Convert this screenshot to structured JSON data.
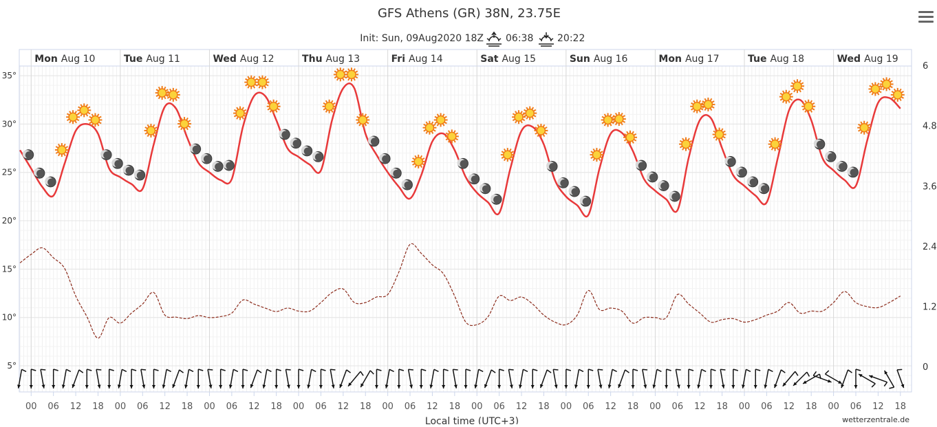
{
  "chart_data": {
    "type": "meteogram",
    "title": "GFS Athens (GR) 38N, 23.75E",
    "subtitle": "Init: Sun, 09Aug2020 18Z",
    "sunrise": "06:38",
    "sunset": "20:22",
    "xlabel": "Local time (UTC+3)",
    "credit": "wetterzentrale.de",
    "x": [
      -3,
      0,
      3,
      6,
      9,
      12,
      15,
      18,
      21,
      24,
      27,
      30,
      33,
      36,
      39,
      42,
      45,
      48,
      51,
      54,
      57,
      60,
      63,
      66,
      69,
      72,
      75,
      78,
      81,
      84,
      87,
      90,
      93,
      96,
      99,
      102,
      105,
      108,
      111,
      114,
      117,
      120,
      123,
      126,
      129,
      132,
      135,
      138,
      141,
      144,
      147,
      150,
      153,
      156,
      159,
      162,
      165,
      168,
      171,
      174,
      177,
      180,
      183,
      186,
      189,
      192,
      195,
      198,
      201,
      204,
      207,
      210,
      213,
      216,
      219,
      222,
      225,
      228,
      231,
      234
    ],
    "series": [
      {
        "color": "#e8393a",
        "axis": "y",
        "values": [
          27.3,
          25.4,
          23.5,
          22.6,
          25.9,
          29.3,
          30.0,
          29.0,
          25.4,
          24.5,
          23.8,
          23.3,
          27.9,
          31.8,
          31.6,
          28.6,
          26.0,
          25.0,
          24.2,
          24.3,
          29.7,
          32.9,
          32.9,
          30.4,
          27.5,
          26.6,
          25.8,
          25.2,
          30.4,
          33.7,
          33.7,
          29.0,
          26.8,
          25.0,
          23.5,
          22.3,
          24.7,
          28.2,
          29.0,
          27.3,
          24.5,
          22.9,
          21.9,
          20.8,
          25.4,
          29.3,
          29.7,
          27.9,
          24.2,
          22.5,
          21.6,
          20.6,
          25.4,
          29.0,
          29.1,
          27.2,
          24.3,
          23.1,
          22.2,
          21.1,
          26.5,
          30.4,
          30.6,
          27.5,
          24.7,
          23.6,
          22.6,
          21.9,
          26.5,
          31.4,
          32.5,
          30.4,
          26.5,
          25.2,
          24.2,
          23.6,
          28.2,
          32.2,
          32.7,
          31.6
        ]
      },
      {
        "color": "#8b2a1a",
        "axis": "y2",
        "dash": true,
        "values": [
          2.08,
          2.25,
          2.38,
          2.18,
          1.97,
          1.42,
          1.01,
          0.58,
          0.99,
          0.88,
          1.08,
          1.26,
          1.49,
          1.04,
          1.0,
          0.97,
          1.03,
          0.99,
          1.01,
          1.08,
          1.34,
          1.26,
          1.18,
          1.11,
          1.18,
          1.12,
          1.12,
          1.29,
          1.49,
          1.56,
          1.29,
          1.29,
          1.4,
          1.45,
          1.9,
          2.45,
          2.27,
          2.04,
          1.86,
          1.42,
          0.9,
          0.85,
          1.01,
          1.42,
          1.33,
          1.4,
          1.26,
          1.04,
          0.9,
          0.85,
          1.04,
          1.53,
          1.15,
          1.18,
          1.12,
          0.88,
          0.99,
          0.99,
          0.99,
          1.45,
          1.26,
          1.08,
          0.9,
          0.95,
          0.97,
          0.9,
          0.95,
          1.04,
          1.12,
          1.29,
          1.08,
          1.12,
          1.12,
          1.29,
          1.51,
          1.29,
          1.21,
          1.19,
          1.29,
          1.42
        ]
      }
    ],
    "symbols": [
      null,
      "moon",
      "moon",
      "moon",
      "sun",
      "sun",
      "sun",
      "sun",
      "moon",
      "moon",
      "moon",
      "moon",
      "sun",
      "sun",
      "sun",
      "sun",
      "moon",
      "moon",
      "moon",
      "moon",
      "sun",
      "sun",
      "sun",
      "sun",
      "moon",
      "moon",
      "moon",
      "moon",
      "sun",
      "sun",
      "sun",
      "sun",
      "moon",
      "moon",
      "moon",
      "moon",
      "sun",
      "sun",
      "sun",
      "sun",
      "moon",
      "moon",
      "moon",
      "moon",
      "sun",
      "sun",
      "sun",
      "sun",
      "moon",
      "moon",
      "moon",
      "moon",
      "sun",
      "sun",
      "sun",
      "sun",
      "moon",
      "moon",
      "moon",
      "moon",
      "sun",
      "sun",
      "sun",
      "sun",
      "moon",
      "moon",
      "moon",
      "moon",
      "sun",
      "sun",
      "sun",
      "sun",
      "moon",
      "moon",
      "moon",
      "moon",
      "sun",
      "sun",
      "sun",
      "sun"
    ],
    "wind_direction": [
      10,
      0,
      350,
      0,
      10,
      20,
      0,
      350,
      0,
      10,
      0,
      350,
      0,
      10,
      20,
      10,
      0,
      350,
      0,
      10,
      0,
      20,
      10,
      0,
      350,
      0,
      10,
      0,
      350,
      20,
      40,
      30,
      0,
      10,
      0,
      350,
      0,
      10,
      0,
      350,
      0,
      10,
      20,
      0,
      350,
      10,
      0,
      20,
      350,
      0,
      10,
      0,
      350,
      10,
      20,
      0,
      350,
      10,
      0,
      350,
      0,
      10,
      0,
      350,
      0,
      10,
      0,
      10,
      20,
      40,
      45,
      60,
      290,
      300,
      20,
      0,
      120,
      110,
      150,
      340
    ],
    "xlim": [
      -3.2,
      237
    ],
    "ylim": [
      2.3,
      36
    ],
    "y2lim": [
      -0.49,
      6
    ],
    "xticks": [
      {
        "value": 0,
        "label": "00"
      },
      {
        "value": 6,
        "label": "06"
      },
      {
        "value": 12,
        "label": "12"
      },
      {
        "value": 18,
        "label": "18"
      },
      {
        "value": 24,
        "label": "00"
      },
      {
        "value": 30,
        "label": "06"
      },
      {
        "value": 36,
        "label": "12"
      },
      {
        "value": 42,
        "label": "18"
      },
      {
        "value": 48,
        "label": "00"
      },
      {
        "value": 54,
        "label": "06"
      },
      {
        "value": 60,
        "label": "12"
      },
      {
        "value": 66,
        "label": "18"
      },
      {
        "value": 72,
        "label": "00"
      },
      {
        "value": 78,
        "label": "06"
      },
      {
        "value": 84,
        "label": "12"
      },
      {
        "value": 90,
        "label": "18"
      },
      {
        "value": 96,
        "label": "00"
      },
      {
        "value": 102,
        "label": "06"
      },
      {
        "value": 108,
        "label": "12"
      },
      {
        "value": 114,
        "label": "18"
      },
      {
        "value": 120,
        "label": "00"
      },
      {
        "value": 126,
        "label": "06"
      },
      {
        "value": 132,
        "label": "12"
      },
      {
        "value": 138,
        "label": "18"
      },
      {
        "value": 144,
        "label": "00"
      },
      {
        "value": 150,
        "label": "06"
      },
      {
        "value": 156,
        "label": "12"
      },
      {
        "value": 162,
        "label": "18"
      },
      {
        "value": 168,
        "label": "00"
      },
      {
        "value": 174,
        "label": "06"
      },
      {
        "value": 180,
        "label": "12"
      },
      {
        "value": 186,
        "label": "18"
      },
      {
        "value": 192,
        "label": "00"
      },
      {
        "value": 198,
        "label": "06"
      },
      {
        "value": 204,
        "label": "12"
      },
      {
        "value": 210,
        "label": "18"
      },
      {
        "value": 216,
        "label": "00"
      },
      {
        "value": 222,
        "label": "06"
      },
      {
        "value": 228,
        "label": "12"
      },
      {
        "value": 234,
        "label": "18"
      }
    ],
    "day_ticks": [
      {
        "value": 0,
        "weekday": "Mon",
        "label": "Aug 10"
      },
      {
        "value": 24,
        "weekday": "Tue",
        "label": "Aug 11"
      },
      {
        "value": 48,
        "weekday": "Wed",
        "label": "Aug 12"
      },
      {
        "value": 72,
        "weekday": "Thu",
        "label": "Aug 13"
      },
      {
        "value": 96,
        "weekday": "Fri",
        "label": "Aug 14"
      },
      {
        "value": 120,
        "weekday": "Sat",
        "label": "Aug 15"
      },
      {
        "value": 144,
        "weekday": "Sun",
        "label": "Aug 16"
      },
      {
        "value": 168,
        "weekday": "Mon",
        "label": "Aug 17"
      },
      {
        "value": 192,
        "weekday": "Tue",
        "label": "Aug 18"
      },
      {
        "value": 216,
        "weekday": "Wed",
        "label": "Aug 19"
      }
    ],
    "yticks": [
      {
        "value": 5,
        "label": "5°"
      },
      {
        "value": 10,
        "label": "10°"
      },
      {
        "value": 15,
        "label": "15°"
      },
      {
        "value": 20,
        "label": "20°"
      },
      {
        "value": 25,
        "label": "25°"
      },
      {
        "value": 30,
        "label": "30°"
      },
      {
        "value": 35,
        "label": "35°"
      }
    ],
    "y2ticks": [
      0,
      1.2,
      2.4,
      3.6,
      4.8,
      6
    ],
    "grid": true
  }
}
